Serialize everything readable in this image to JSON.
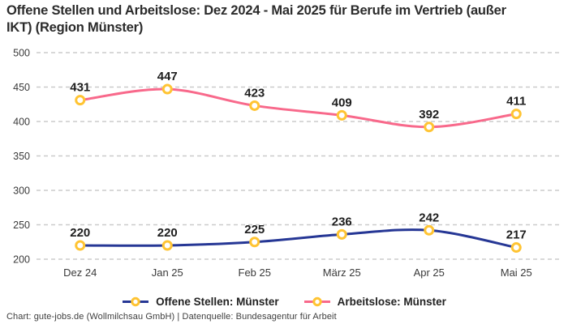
{
  "header": {
    "title": "Offene Stellen und Arbeitslose: Dez 2024 - Mai 2025 für Berufe im Vertrieb (außer IKT) (Region Münster)"
  },
  "footer": {
    "credit": "Chart: gute-jobs.de (Wollmilchsau GmbH) | Datenquelle: Bundesagentur für Arbeit"
  },
  "colors": {
    "open_positions": "#263795",
    "unemployed": "#F8698B",
    "marker_ring": "#FFC433",
    "marker_fill": "#FFFFFF",
    "gridline": "#CBCBCB",
    "title_text": "#2B2B2B",
    "axis_text": "#3A3A3A",
    "data_label_text": "#1E1E1E"
  },
  "chart_data": {
    "type": "line",
    "title": "Offene Stellen und Arbeitslose: Dez 2024 - Mai 2025 für Berufe im Vertrieb (außer IKT) (Region Münster)",
    "categories": [
      "Dez 24",
      "Jan 25",
      "Feb 25",
      "März 25",
      "Apr 25",
      "Mai 25"
    ],
    "series": [
      {
        "name": "Offene Stellen: Münster",
        "color_key": "open_positions",
        "marker": "circle-yellow-ring",
        "values": [
          220,
          220,
          225,
          236,
          242,
          217
        ]
      },
      {
        "name": "Arbeitslose: Münster",
        "color_key": "unemployed",
        "marker": "circle-yellow-ring",
        "values": [
          431,
          447,
          423,
          409,
          392,
          411
        ]
      }
    ],
    "xlabel": "",
    "ylabel": "",
    "ylim": [
      200,
      500
    ],
    "yticks": [
      200,
      250,
      300,
      350,
      400,
      450,
      500
    ],
    "grid": "horizontal-dashed",
    "legend_position": "bottom",
    "data_labels": true
  }
}
